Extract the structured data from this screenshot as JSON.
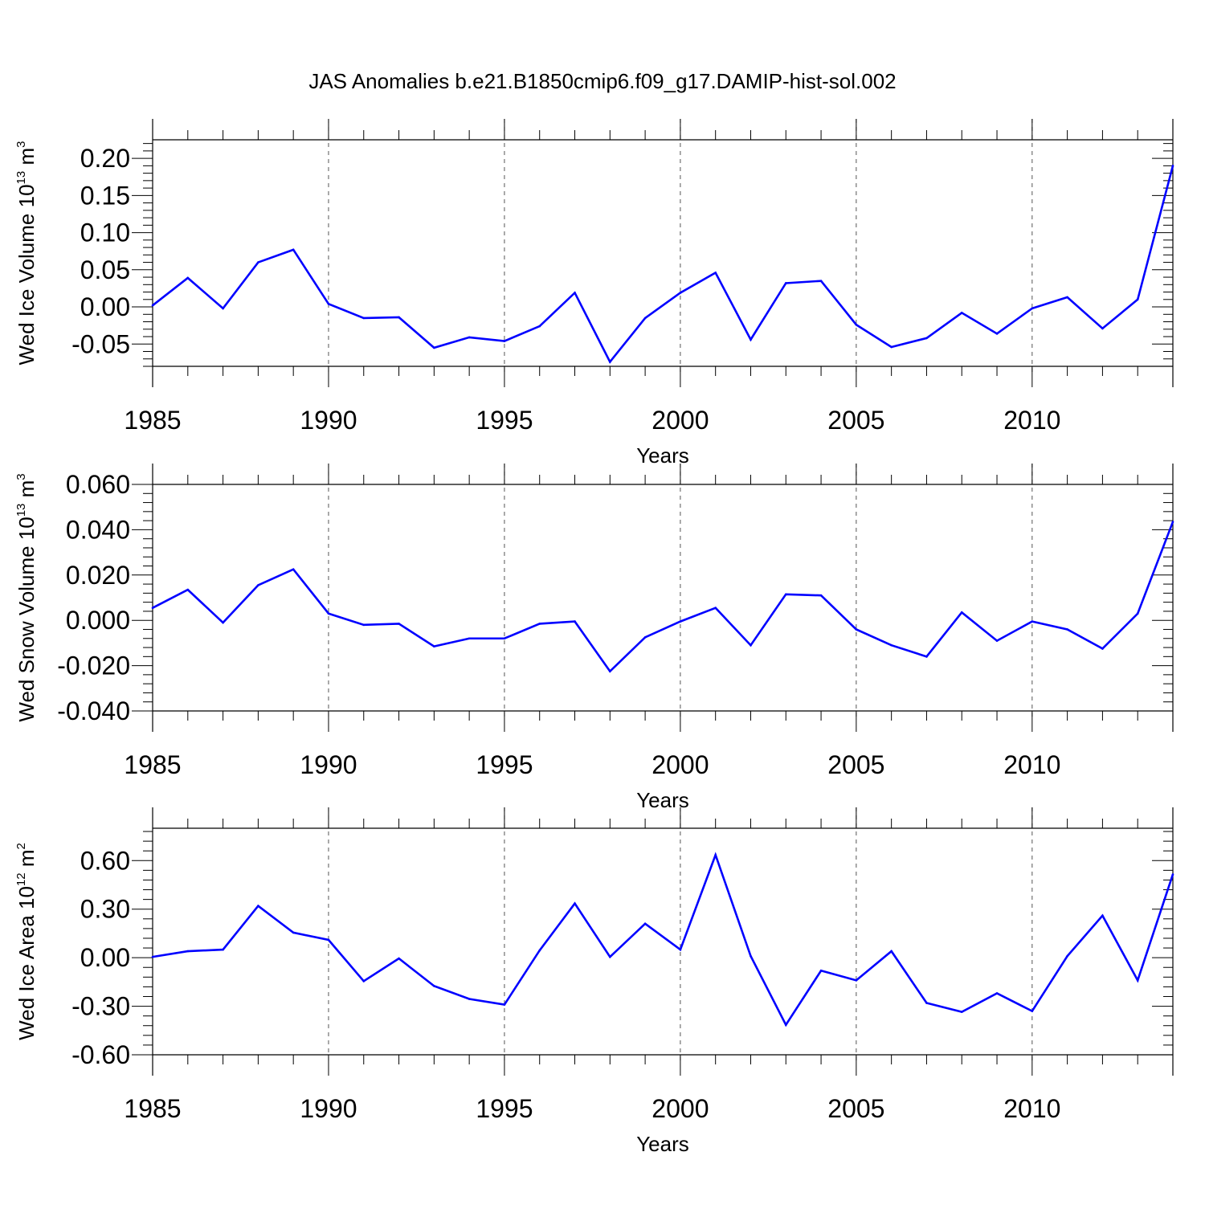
{
  "figure": {
    "title": "JAS Anomalies b.e21.B1850cmip6.f09_g17.DAMIP-hist-sol.002"
  },
  "colors": {
    "series": "#0000ff",
    "axes": "#000000",
    "gridlines": "#555555"
  },
  "chart_data": [
    {
      "type": "line",
      "title": "JAS Anomalies b.e21.B1850cmip6.f09_g17.DAMIP-hist-sol.002",
      "xlabel": "Years",
      "ylabel": {
        "text": "Wed Ice Volume 10",
        "exp": "13",
        "unit": " m",
        "unit_exp": "3"
      },
      "xlim": [
        1985,
        2014
      ],
      "ylim": [
        -0.08,
        0.225
      ],
      "xticks": [
        "1985",
        "1990",
        "1995",
        "2000",
        "2005",
        "2010"
      ],
      "yticks": [
        -0.05,
        0.0,
        0.05,
        0.1,
        0.15,
        0.2
      ],
      "ytick_labels": [
        "-0.05",
        "0.00",
        "0.05",
        "0.10",
        "0.15",
        "0.20"
      ],
      "x": [
        1985,
        1986,
        1987,
        1988,
        1989,
        1990,
        1991,
        1992,
        1993,
        1994,
        1995,
        1996,
        1997,
        1998,
        1999,
        2000,
        2001,
        2002,
        2003,
        2004,
        2005,
        2006,
        2007,
        2008,
        2009,
        2010,
        2011,
        2012,
        2013,
        2014
      ],
      "series": [
        {
          "name": "Wed Ice Volume",
          "values": [
            0.002,
            0.039,
            -0.002,
            0.06,
            0.077,
            0.004,
            -0.015,
            -0.014,
            -0.055,
            -0.041,
            -0.046,
            -0.026,
            0.019,
            -0.074,
            -0.015,
            0.019,
            0.046,
            -0.044,
            0.032,
            0.035,
            -0.024,
            -0.054,
            -0.042,
            -0.008,
            -0.036,
            -0.002,
            0.013,
            -0.029,
            0.01,
            0.19
          ]
        }
      ]
    },
    {
      "type": "line",
      "xlabel": "Years",
      "ylabel": {
        "text": "Wed Snow Volume 10",
        "exp": "13",
        "unit": " m",
        "unit_exp": "3"
      },
      "xlim": [
        1985,
        2014
      ],
      "ylim": [
        -0.04,
        0.06
      ],
      "xticks": [
        "1985",
        "1990",
        "1995",
        "2000",
        "2005",
        "2010"
      ],
      "yticks": [
        -0.04,
        -0.02,
        0.0,
        0.02,
        0.04,
        0.06
      ],
      "ytick_labels": [
        "-0.040",
        "-0.020",
        "0.000",
        "0.020",
        "0.040",
        "0.060"
      ],
      "x": [
        1985,
        1986,
        1987,
        1988,
        1989,
        1990,
        1991,
        1992,
        1993,
        1994,
        1995,
        1996,
        1997,
        1998,
        1999,
        2000,
        2001,
        2002,
        2003,
        2004,
        2005,
        2006,
        2007,
        2008,
        2009,
        2010,
        2011,
        2012,
        2013,
        2014
      ],
      "series": [
        {
          "name": "Wed Snow Volume",
          "values": [
            0.0055,
            0.0135,
            -0.001,
            0.0155,
            0.0225,
            0.003,
            -0.002,
            -0.0015,
            -0.0115,
            -0.008,
            -0.008,
            -0.0015,
            -0.0005,
            -0.0225,
            -0.0075,
            -0.0005,
            0.0055,
            -0.011,
            0.0115,
            0.011,
            -0.004,
            -0.011,
            -0.016,
            0.0035,
            -0.009,
            -0.0005,
            -0.004,
            -0.0125,
            0.003,
            0.0435
          ]
        }
      ]
    },
    {
      "type": "line",
      "xlabel": "Years",
      "ylabel": {
        "text": "Wed Ice Area 10",
        "exp": "12",
        "unit": " m",
        "unit_exp": "2"
      },
      "xlim": [
        1985,
        2014
      ],
      "ylim": [
        -0.6,
        0.8
      ],
      "xticks": [
        "1985",
        "1990",
        "1995",
        "2000",
        "2005",
        "2010"
      ],
      "yticks": [
        -0.6,
        -0.3,
        0.0,
        0.3,
        0.6
      ],
      "ytick_labels": [
        "-0.60",
        "-0.30",
        "0.00",
        "0.30",
        "0.60"
      ],
      "x": [
        1985,
        1986,
        1987,
        1988,
        1989,
        1990,
        1991,
        1992,
        1993,
        1994,
        1995,
        1996,
        1997,
        1998,
        1999,
        2000,
        2001,
        2002,
        2003,
        2004,
        2005,
        2006,
        2007,
        2008,
        2009,
        2010,
        2011,
        2012,
        2013,
        2014
      ],
      "series": [
        {
          "name": "Wed Ice Area",
          "values": [
            0.005,
            0.04,
            0.05,
            0.32,
            0.155,
            0.11,
            -0.145,
            -0.005,
            -0.175,
            -0.255,
            -0.29,
            0.045,
            0.335,
            0.005,
            0.21,
            0.05,
            0.635,
            0.01,
            -0.415,
            -0.08,
            -0.14,
            0.04,
            -0.28,
            -0.335,
            -0.22,
            -0.33,
            0.01,
            0.26,
            -0.14,
            0.515
          ]
        }
      ]
    }
  ]
}
